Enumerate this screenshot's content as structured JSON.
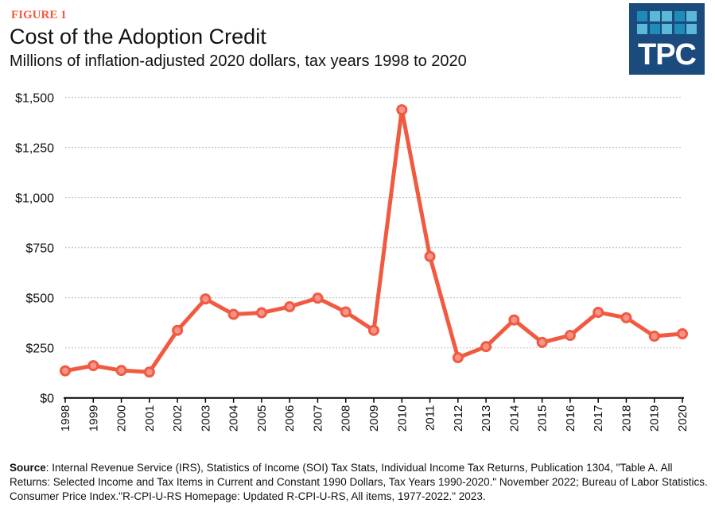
{
  "figure_label": "FIGURE 1",
  "logo_text": "TPC",
  "colors": {
    "line": "#f15a40",
    "marker_fill": "#f4948a",
    "logo_bg": "#1a4b7c",
    "figure_label": "#f15a40"
  },
  "source": {
    "label": "Source",
    "text": ": Internal Revenue Service (IRS), Statistics of Income (SOI) Tax Stats, Individual Income Tax Returns, Publication 1304, \"Table A. All Returns: Selected Income and Tax Items in Current and Constant 1990 Dollars, Tax Years 1990-2020.\" November 2022; Bureau of Labor Statistics. Consumer Price Index.\"R-CPI-U-RS Homepage: Updated R-CPI-U-RS, All items, 1977-2022.\" 2023."
  },
  "chart_data": {
    "type": "line",
    "title": "Cost of the Adoption Credit",
    "subtitle": "Millions of inflation-adjusted 2020 dollars, tax years 1998 to 2020",
    "xlabel": "",
    "ylabel": "",
    "ylim": [
      0,
      1500
    ],
    "yticks": [
      0,
      250,
      500,
      750,
      1000,
      1250,
      1500
    ],
    "ytick_labels": [
      "$0",
      "$250",
      "$500",
      "$750",
      "$1,000",
      "$1,250",
      "$1,500"
    ],
    "grid": "horizontal dotted",
    "x": [
      "1998",
      "1999",
      "2000",
      "2001",
      "2002",
      "2003",
      "2004",
      "2005",
      "2006",
      "2007",
      "2008",
      "2009",
      "2010",
      "2011",
      "2012",
      "2013",
      "2014",
      "2015",
      "2016",
      "2017",
      "2018",
      "2019",
      "2020"
    ],
    "values": [
      135,
      161,
      137,
      129,
      337,
      494,
      417,
      425,
      455,
      498,
      429,
      337,
      1438,
      706,
      201,
      256,
      389,
      277,
      312,
      427,
      400,
      308,
      320
    ]
  }
}
